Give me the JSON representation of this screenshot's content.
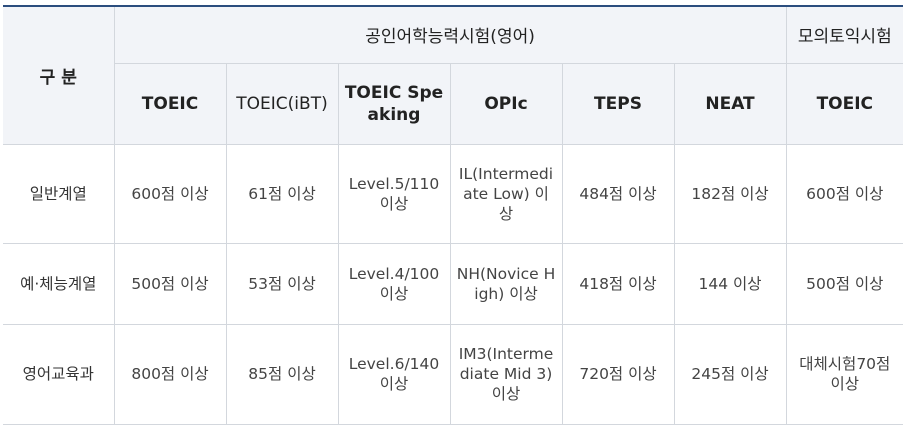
{
  "header": {
    "category": "구 분",
    "group_official": "공인어학능력시험(영어)",
    "group_mock": "모의토익시험",
    "columns": [
      "TOEIC",
      "TOEIC(iBT)",
      "TOEIC Speaking",
      "OPIc",
      "TEPS",
      "NEAT",
      "TOEIC"
    ]
  },
  "rows": [
    {
      "label": "일반계열",
      "cells": [
        "600점 이상",
        "61점 이상",
        "Level.5/110 이상",
        "IL(Intermediate Low) 이상",
        "484점 이상",
        "182점 이상",
        "600점 이상"
      ]
    },
    {
      "label": "예·체능계열",
      "cells": [
        "500점 이상",
        "53점 이상",
        "Level.4/100 이상",
        "NH(Novice High) 이상",
        "418점 이상",
        "144 이상",
        "500점 이상"
      ]
    },
    {
      "label": "영어교육과",
      "cells": [
        "800점 이상",
        "85점 이상",
        "Level.6/140 이상",
        "IM3(Intermediate Mid 3) 이상",
        "720점 이상",
        "245점 이상",
        "대체시험70점 이상"
      ]
    }
  ],
  "colors": {
    "top_border": "#2b4d7e",
    "header_bg": "#f2f4f8",
    "grid": "#d3d7dd"
  }
}
